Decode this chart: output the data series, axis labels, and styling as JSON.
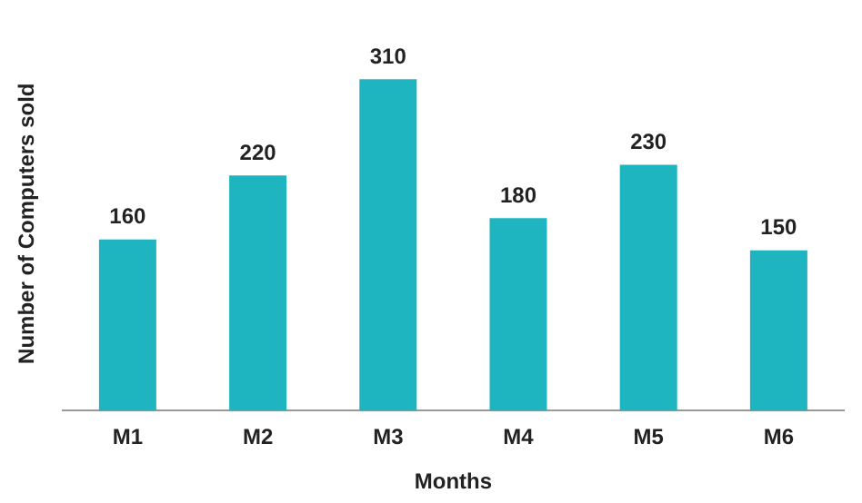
{
  "chart_data": {
    "type": "bar",
    "xlabel": "Months",
    "ylabel": "Number of Computers sold",
    "categories": [
      "M1",
      "M2",
      "M3",
      "M4",
      "M5",
      "M6"
    ],
    "values": [
      160,
      220,
      310,
      180,
      230,
      150
    ],
    "color": "#1fb5c0",
    "data_labels": true,
    "grid": false,
    "legend": false
  }
}
